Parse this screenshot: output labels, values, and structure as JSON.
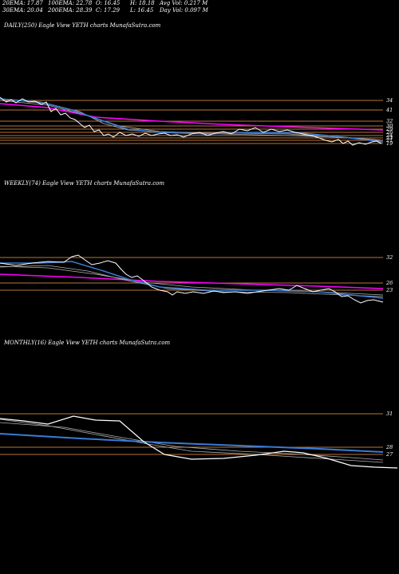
{
  "header": {
    "ema20": "20EMA: 17.87",
    "ema100": "100EMA: 22.78",
    "open": "O: 16.45",
    "high": "H: 18.18",
    "avg_vol": "Avg Vol: 0.217 M",
    "ema30": "30EMA: 20.04",
    "ema200": "200EMA: 28.39",
    "close": "C: 17.29",
    "low": "L: 16.45",
    "day_vol": "Day Vol: 0.097 M"
  },
  "colors": {
    "price": "#ffffff",
    "ema_blue": "#3a7bd5",
    "ema_magenta": "#ff00ff",
    "level_line": "#b8733a",
    "ema_gray": "#b0b0b0"
  },
  "chart_data": [
    {
      "type": "line",
      "title": "DAILY(250) Eagle   View  YETH charts MunafaSutra.com",
      "ylabels": [
        "34",
        "41",
        "32",
        "30",
        "29",
        "26",
        "24",
        "23",
        "21",
        "19"
      ],
      "series": [],
      "grid": false
    },
    {
      "type": "line",
      "title": "WEEKLY(74) Eagle   View  YETH charts MunafaSutra.com",
      "ylabels": [
        "32",
        "26",
        "23"
      ],
      "series": [],
      "grid": false
    },
    {
      "type": "line",
      "title": "MONTHLY(16) Eagle   View  YETH charts MunafaSutra.com",
      "ylabels": [
        "31",
        "28",
        "27"
      ],
      "series": [],
      "grid": false
    }
  ]
}
